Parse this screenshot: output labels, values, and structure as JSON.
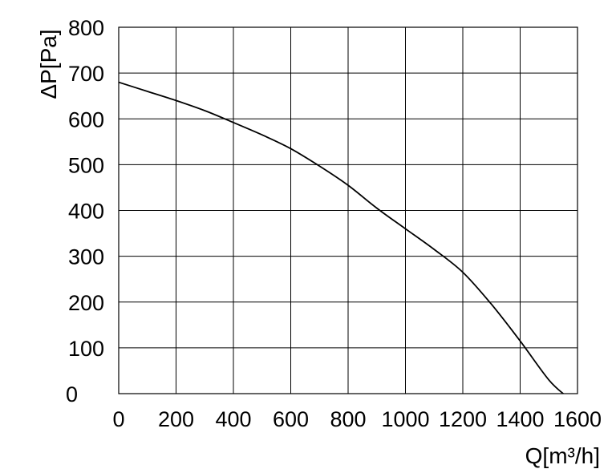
{
  "chart_data": {
    "type": "line",
    "xlabel": "Q[m³/h]",
    "ylabel": "ΔP[Pa]",
    "xlim": [
      0,
      1600
    ],
    "ylim": [
      0,
      800
    ],
    "xticks": [
      "0",
      "200",
      "400",
      "600",
      "800",
      "1000",
      "1200",
      "1400",
      "1600"
    ],
    "yticks": [
      "0",
      "100",
      "200",
      "300",
      "400",
      "500",
      "600",
      "700",
      "800"
    ],
    "grid": true,
    "series": [
      {
        "x": [
          0,
          100,
          200,
          300,
          400,
          500,
          600,
          700,
          800,
          900,
          1000,
          1100,
          1200,
          1300,
          1400,
          1500,
          1560
        ],
        "values": [
          680,
          660,
          640,
          618,
          592,
          565,
          535,
          497,
          455,
          405,
          360,
          315,
          265,
          195,
          115,
          30,
          -5
        ]
      }
    ]
  }
}
